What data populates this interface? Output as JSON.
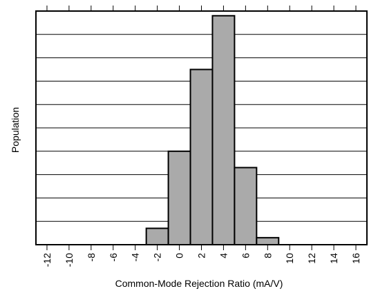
{
  "chart_data": {
    "type": "bar",
    "title": "",
    "xlabel": "Common-Mode Rejection Ratio (mA/V)",
    "ylabel": "Population",
    "xlim": [
      -13,
      17
    ],
    "ylim": [
      0,
      10
    ],
    "x_ticks": [
      -12,
      -10,
      -8,
      -6,
      -4,
      -2,
      0,
      2,
      4,
      6,
      8,
      10,
      12,
      14,
      16
    ],
    "grid": true,
    "bins": [
      {
        "x0": -3,
        "x1": -1,
        "value": 0.7
      },
      {
        "x0": -1,
        "x1": 1,
        "value": 4.0
      },
      {
        "x0": 1,
        "x1": 3,
        "value": 7.5
      },
      {
        "x0": 3,
        "x1": 5,
        "value": 9.8
      },
      {
        "x0": 5,
        "x1": 7,
        "value": 3.3
      },
      {
        "x0": 7,
        "x1": 9,
        "value": 0.3
      }
    ],
    "bar_color": "#aaaaaa"
  }
}
